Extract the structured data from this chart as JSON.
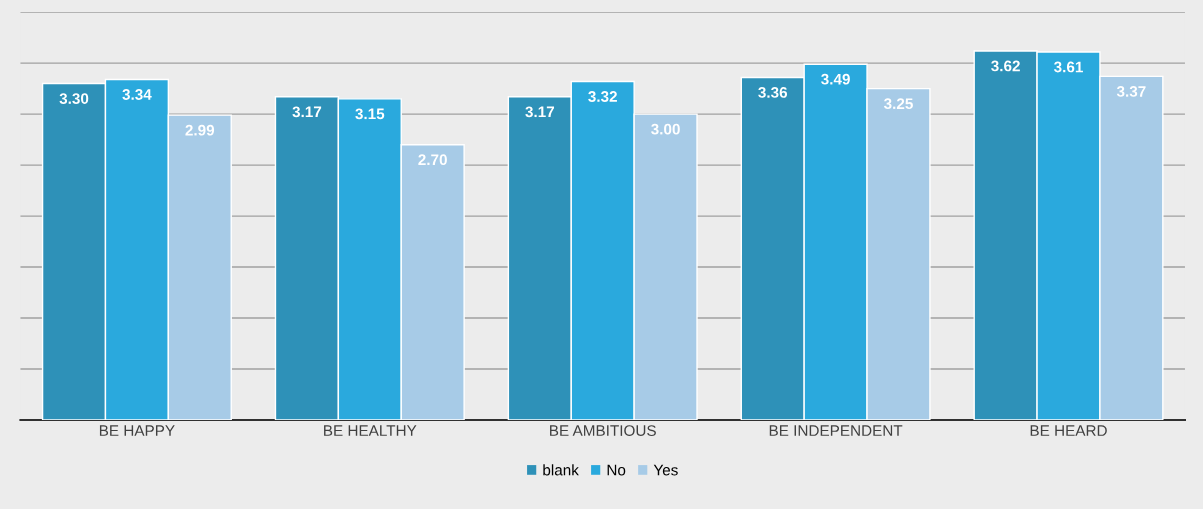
{
  "chart_data": {
    "type": "bar",
    "categories": [
      "BE HAPPY",
      "BE HEALTHY",
      "BE AMBITIOUS",
      "BE INDEPENDENT",
      "BE HEARD"
    ],
    "series": [
      {
        "name": "blank",
        "color": "#2e91b8",
        "values": [
          3.3,
          3.17,
          3.17,
          3.36,
          3.62
        ],
        "value_labels": [
          "3.30",
          "3.17",
          "3.17",
          "3.36",
          "3.62"
        ]
      },
      {
        "name": "No",
        "color": "#2aa9dd",
        "values": [
          3.34,
          3.15,
          3.32,
          3.49,
          3.61
        ],
        "value_labels": [
          "3.34",
          "3.15",
          "3.32",
          "3.49",
          "3.61"
        ]
      },
      {
        "name": "Yes",
        "color": "#a7cbe7",
        "values": [
          2.99,
          2.7,
          3.0,
          3.25,
          3.37
        ],
        "value_labels": [
          "2.99",
          "2.70",
          "3.00",
          "3.25",
          "3.37"
        ]
      }
    ],
    "ylim": [
      0,
      4
    ],
    "yticks": [
      {
        "value": 0.5,
        "label": null
      },
      {
        "value": 1,
        "label": null
      },
      {
        "value": 1.5,
        "label": null
      },
      {
        "value": 2,
        "label": null
      },
      {
        "value": 2.5,
        "label": null
      },
      {
        "value": 3,
        "label": null
      },
      {
        "value": 3.5,
        "label": null
      },
      {
        "value": 4,
        "label": null
      }
    ],
    "grid": "y",
    "tick_labels": "x",
    "legend": "bottom"
  }
}
